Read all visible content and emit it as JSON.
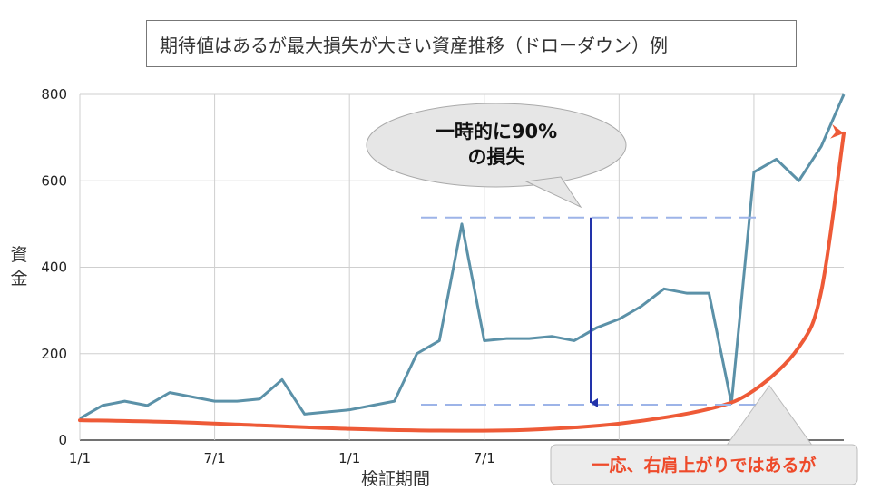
{
  "chart_data": {
    "type": "line",
    "title": "期待値はあるが最大損失が大きい資産推移（ドローダウン）例",
    "xlabel": "検証期間",
    "ylabel": "資金",
    "ylim": [
      0,
      800
    ],
    "yticks": [
      0,
      200,
      400,
      600,
      800
    ],
    "xticks": [
      {
        "index": 0,
        "label": "1/1"
      },
      {
        "index": 6,
        "label": "7/1"
      },
      {
        "index": 12,
        "label": "1/1"
      },
      {
        "index": 18,
        "label": "7/1"
      }
    ],
    "grid": true,
    "series": [
      {
        "color": "#5b91a8",
        "x": [
          0,
          1,
          2,
          3,
          4,
          5,
          6,
          7,
          8,
          9,
          10,
          11,
          12,
          13,
          14,
          15,
          16,
          17,
          18,
          19,
          20,
          21,
          22,
          23,
          24,
          25,
          26,
          27,
          28,
          29,
          30,
          31,
          32,
          33,
          34
        ],
        "values": [
          50,
          80,
          90,
          80,
          110,
          100,
          90,
          90,
          95,
          140,
          60,
          65,
          70,
          80,
          90,
          200,
          230,
          500,
          230,
          235,
          235,
          240,
          230,
          260,
          280,
          310,
          350,
          340,
          340,
          85,
          620,
          650,
          600,
          680,
          800
        ]
      },
      {
        "color": "#ee5a37",
        "x": [
          0,
          4,
          8,
          12,
          16,
          20,
          24,
          28,
          30,
          32,
          33,
          34
        ],
        "values": [
          46,
          42,
          34,
          26,
          22,
          24,
          38,
          72,
          115,
          215,
          345,
          710
        ]
      }
    ],
    "annotations": {
      "bubble_top": "一時的に90%",
      "bubble_bottom": "の損失",
      "drawdown_high": 515,
      "drawdown_low": 82,
      "callout": "一応、右肩上がりではあるが"
    }
  }
}
